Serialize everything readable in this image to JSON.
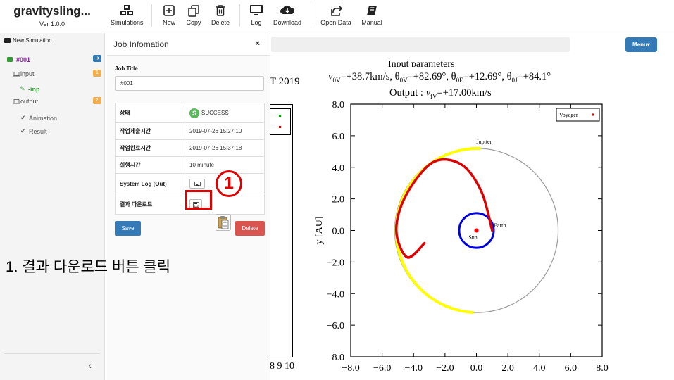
{
  "brand": {
    "title": "gravitysling...",
    "version": "Ver 1.0.0"
  },
  "toolbar": {
    "simulations": "Simulations",
    "new": "New",
    "copy": "Copy",
    "delete": "Delete",
    "log": "Log",
    "download": "Download",
    "open_data": "Open Data",
    "manual": "Manual"
  },
  "sidebar": {
    "new_simulation": "New Simulation",
    "job_name": "#001",
    "input_label": "input",
    "input_badge": "1",
    "input_file": "-inp",
    "output_label": "output",
    "output_badge": "2",
    "animation": "Animation",
    "result": "Result",
    "collapse_glyph": "‹"
  },
  "job_panel": {
    "header": "Job Infomation",
    "close": "×",
    "title_label": "Job Title",
    "title_value": "#001",
    "rows": {
      "status_key": "상태",
      "status_icon_letter": "S",
      "status_value": "SUCCESS",
      "submit_key": "작업제출시간",
      "submit_value": "2019-07-26 15:27:10",
      "complete_key": "작업완료시간",
      "complete_value": "2019-07-26 15:37:18",
      "runtime_key": "실행시간",
      "runtime_value": "10 minute",
      "syslog_key": "System Log (Out)",
      "download_key": "결과 다운로드"
    },
    "save": "Save",
    "delete": "Delete"
  },
  "main": {
    "menu": "Menu▾"
  },
  "left_plot": {
    "title_fragment": "T 2019",
    "tick_fragment": "8  9 10"
  },
  "plot": {
    "title_line1": "Input parameters",
    "title_line2": "v0V=+38.7km/s, θ0V=+82.69°, θ0E=+12.69°, θ0J=+84.1°",
    "title_line3": "Output : vfV=+17.00km/s",
    "ylabel": "y [AU]",
    "legend": "Voyager",
    "label_jupiter": "Jupiter",
    "label_earth": "Earth",
    "label_sun": "Sun",
    "colors": {
      "voyager": "#dd0000",
      "jupiter_orbit": "#ffff00",
      "earth_orbit": "#0000dd",
      "sun": "#ee0000"
    }
  },
  "chart_data": {
    "type": "line",
    "title": "Input parameters",
    "xlim": [
      -8.0,
      8.0
    ],
    "ylim": [
      -8.0,
      8.0
    ],
    "x_ticks": [
      "-8.0",
      "-6.0",
      "-4.0",
      "-2.0",
      "0.0",
      "2.0",
      "4.0",
      "6.0",
      "8.0"
    ],
    "y_ticks": [
      "8.0",
      "6.0",
      "4.0",
      "2.0",
      "0.0",
      "-2.0",
      "-4.0",
      "-6.0",
      "-8.0"
    ],
    "ylabel": "y [AU]",
    "legend_entries": [
      "Voyager"
    ],
    "series": [
      {
        "name": "Jupiter",
        "orbit_radius": 5.2
      },
      {
        "name": "Earth",
        "orbit_radius": 1.0
      },
      {
        "name": "Voyager",
        "x": [
          1.0,
          0.3,
          -1.0,
          -2.8,
          -4.5,
          -5.1,
          -4.4,
          -3.3
        ],
        "y": [
          0.0,
          2.5,
          4.2,
          4.3,
          2.2,
          0.0,
          -1.7,
          -0.8
        ]
      }
    ]
  },
  "annotation": {
    "step_marker": "1",
    "caption": "1. 결과 다운로드 버튼 클릭"
  }
}
